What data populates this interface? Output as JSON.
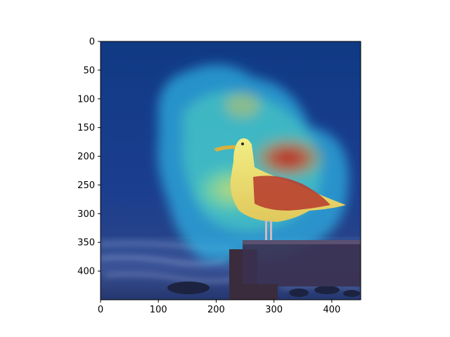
{
  "figure": {
    "image_description": "photo of a seagull standing on a wooden post at the beach, overlaid with a jet-colormap attention heatmap",
    "x_ticks": [
      "0",
      "100",
      "200",
      "300",
      "400"
    ],
    "y_ticks": [
      "0",
      "50",
      "100",
      "150",
      "200",
      "250",
      "300",
      "350",
      "400"
    ],
    "x_range": [
      0,
      450
    ],
    "y_range": [
      0,
      450
    ],
    "colormap": "jet",
    "colors": {
      "sky_top": "#123e86",
      "sky_bottom": "#1d3f8e",
      "sea": "#26407e",
      "heat_low": "#1a49b8",
      "heat_mid": "#2fd0e0",
      "heat_high": "#c81818",
      "gull_body": "#e8e66a",
      "post": "#3a2e48",
      "axis": "#000000"
    }
  }
}
